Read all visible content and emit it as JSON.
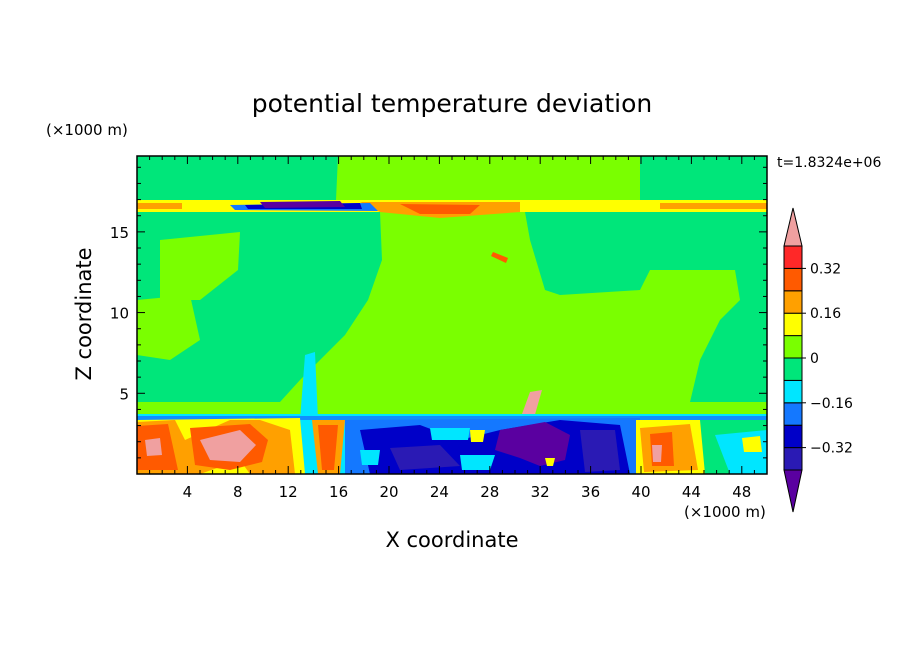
{
  "chart_data": {
    "type": "heatmap",
    "title": "potential temperature deviation",
    "xlabel": "X coordinate",
    "ylabel": "Z coordinate",
    "x_unit_label": "(×1000 m)",
    "y_unit_label": "(×1000 m)",
    "time_label": "t=1.8324e+06",
    "xlim": [
      0,
      50
    ],
    "ylim": [
      0,
      19.7
    ],
    "x_ticks": [
      4,
      8,
      12,
      16,
      20,
      24,
      28,
      32,
      36,
      40,
      44,
      48
    ],
    "y_ticks": [
      5,
      10,
      15
    ],
    "colorbar": {
      "levels": [
        -0.4,
        -0.32,
        -0.24,
        -0.16,
        -0.08,
        0,
        0.08,
        0.16,
        0.24,
        0.32,
        0.4
      ],
      "colors": [
        "#5a00a0",
        "#2a1ab4",
        "#0000c8",
        "#1478ff",
        "#00e6ff",
        "#00e67a",
        "#7aff00",
        "#ffff00",
        "#ffa000",
        "#ff5a00",
        "#ff2828",
        "#f0a0a0"
      ],
      "labels": [
        "0.32",
        "0.16",
        "0",
        "−0.16",
        "−0.32"
      ]
    }
  }
}
